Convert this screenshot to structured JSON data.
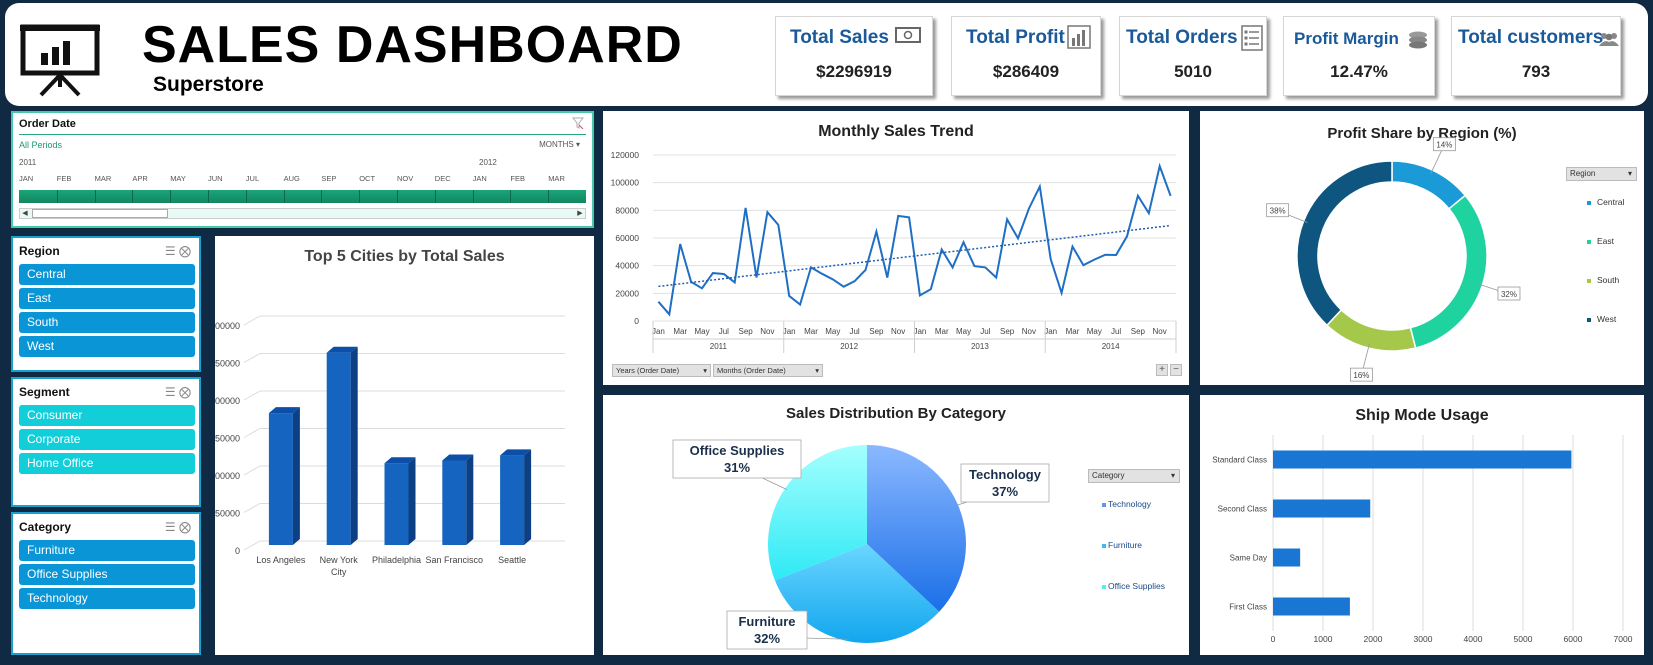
{
  "header": {
    "title": "SALES DASHBOARD",
    "subtitle": "Superstore"
  },
  "kpis": [
    {
      "title": "Total Sales",
      "value": "$2296919",
      "icon": "money-icon"
    },
    {
      "title": "Total Profit",
      "value": "$286409",
      "icon": "bar-chart-icon"
    },
    {
      "title": "Total Orders",
      "value": "5010",
      "icon": "checklist-icon"
    },
    {
      "title": "Profit Margin",
      "value": "12.47%",
      "icon": "coins-icon"
    },
    {
      "title": "Total customers",
      "value": "793",
      "icon": "users-icon"
    }
  ],
  "timeline": {
    "title": "Order Date",
    "selection": "All Periods",
    "unit": "MONTHS",
    "years": [
      "2011",
      "2012"
    ],
    "months": [
      "JAN",
      "FEB",
      "MAR",
      "APR",
      "MAY",
      "JUN",
      "JUL",
      "AUG",
      "SEP",
      "OCT",
      "NOV",
      "DEC",
      "JAN",
      "FEB",
      "MAR"
    ]
  },
  "slicers": {
    "region": {
      "title": "Region",
      "items": [
        "Central",
        "East",
        "South",
        "West"
      ]
    },
    "segment": {
      "title": "Segment",
      "items": [
        "Consumer",
        "Corporate",
        "Home Office"
      ]
    },
    "category": {
      "title": "Category",
      "items": [
        "Furniture",
        "Office Supplies",
        "Technology"
      ]
    }
  },
  "colors": {
    "background": "#0f2a42",
    "kpi_title": "#1a5a9a",
    "slicer_blue": "#0a96d6",
    "slicer_cyan": "#12ced8",
    "line": "#1f6fc5",
    "bar": "#1565c0",
    "ship_bar": "#1976d2"
  },
  "chart_data": [
    {
      "id": "top-cities",
      "type": "bar",
      "title": "Top 5 Cities by Total Sales",
      "categories": [
        "Los Angeles",
        "New York City",
        "Philadelphia",
        "San Francisco",
        "Seattle"
      ],
      "values": [
        175851,
        256368,
        109077,
        112669,
        119541
      ],
      "yticks": [
        "0",
        "50000",
        "100000",
        "150000",
        "200000",
        "250000",
        "300000"
      ],
      "ylim": [
        0,
        300000
      ]
    },
    {
      "id": "monthly-trend",
      "type": "line",
      "title": "Monthly Sales Trend",
      "years": [
        "2011",
        "2012",
        "2013",
        "2014"
      ],
      "month_labels": [
        "Jan",
        "Mar",
        "May",
        "Jul",
        "Sep",
        "Nov"
      ],
      "values": [
        13946,
        4810,
        55691,
        28295,
        23648,
        34595,
        33946,
        27909,
        81777,
        31453,
        78629,
        69546,
        18174,
        11951,
        38726,
        34195,
        30132,
        24797,
        28765,
        36898,
        64596,
        31405,
        75972,
        74920,
        18542,
        22979,
        51716,
        38750,
        56988,
        39669,
        38727,
        31434,
        73410,
        59688,
        81277,
        97238,
        44703,
        20301,
        53873,
        40304,
        44357,
        47824,
        47742,
        61251,
        90591,
        77907,
        111964,
        90465
      ],
      "trendline": [
        25000,
        69000
      ],
      "yticks": [
        "0",
        "20000",
        "40000",
        "60000",
        "80000",
        "100000",
        "120000"
      ],
      "ylim": [
        0,
        120000
      ],
      "buttons": [
        "Years (Order Date)",
        "Months (Order Date)"
      ]
    },
    {
      "id": "profit-region",
      "type": "pie",
      "title": "Profit Share by Region (%)",
      "legend_title": "Region",
      "categories": [
        "Central",
        "East",
        "South",
        "West"
      ],
      "values": [
        14,
        32,
        16,
        38
      ],
      "labels": [
        "14%",
        "32%",
        "16%",
        "38%"
      ],
      "colors": [
        "#1a9ad6",
        "#1fd3a0",
        "#a5c84a",
        "#0e5680"
      ]
    },
    {
      "id": "sales-category",
      "type": "pie",
      "title": "Sales Distribution By Category",
      "legend_title": "Category",
      "categories": [
        "Technology",
        "Furniture",
        "Office Supplies"
      ],
      "values": [
        37,
        32,
        31
      ],
      "labels": [
        "37%",
        "32%",
        "31%"
      ],
      "colors": [
        "#5a96f2",
        "#3fb8f4",
        "#4feff4"
      ]
    },
    {
      "id": "ship-mode",
      "type": "bar",
      "title": "Ship Mode Usage",
      "categories": [
        "Standard Class",
        "Second Class",
        "Same Day",
        "First Class"
      ],
      "values": [
        5968,
        1945,
        543,
        1538
      ],
      "xticks": [
        "0",
        "1000",
        "2000",
        "3000",
        "4000",
        "5000",
        "6000",
        "7000"
      ],
      "xlim": [
        0,
        7000
      ]
    }
  ]
}
